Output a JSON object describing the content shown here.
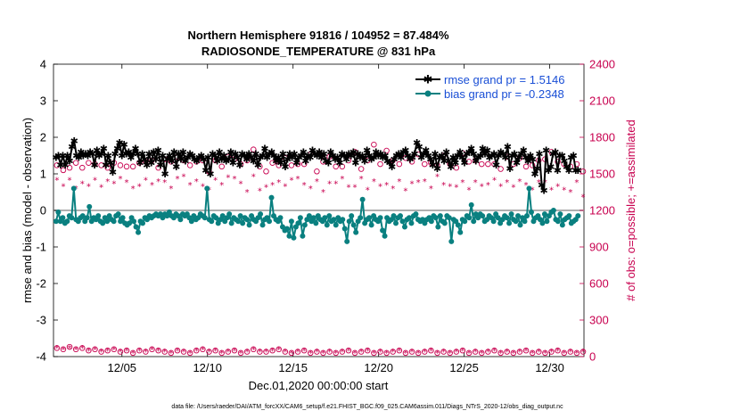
{
  "chart_data": {
    "type": "line",
    "title": "Northern Hemisphere 91816 / 104952 = 87.484%",
    "subtitle": "RADIOSONDE_TEMPERATURE @ 831 hPa",
    "xlabel": "Dec.01,2020 00:00:00 start",
    "ylabel": "rmse and bias (model - observation)",
    "ylabel_right": "# of obs: o=possible; +=assimilated",
    "xlim": [
      1,
      32
    ],
    "ylim": [
      -4,
      4
    ],
    "ylim_right": [
      0,
      2400
    ],
    "x_ticks": [
      5,
      10,
      15,
      20,
      25,
      30
    ],
    "x_tick_labels": [
      "12/05",
      "12/10",
      "12/15",
      "12/20",
      "12/25",
      "12/30"
    ],
    "y_ticks": [
      "-4",
      "-3",
      "-2",
      "-1",
      "0",
      "1",
      "2",
      "3",
      "4"
    ],
    "y_ticks_right": [
      "0",
      "300",
      "600",
      "900",
      "1200",
      "1500",
      "1800",
      "2100",
      "2400"
    ],
    "colors": {
      "rmse": "#000000",
      "bias": "#0a8080",
      "obs": "#c8004f",
      "zero_line": "#b0b0b0"
    },
    "legend_position": "top-right",
    "series": [
      {
        "name": "rmse grand pr = 1.5146",
        "axis": "left",
        "values": [
          1.45,
          1.5,
          1.25,
          1.5,
          1.25,
          1.5,
          1.35,
          1.75,
          1.9,
          1.5,
          1.45,
          1.6,
          1.5,
          1.55,
          1.5,
          1.6,
          1.55,
          1.25,
          1.65,
          1.5,
          1.55,
          1.7,
          1.25,
          1.5,
          1.3,
          1.05,
          1.55,
          1.7,
          1.85,
          1.5,
          1.8,
          1.55,
          1.6,
          1.45,
          1.55,
          1.7,
          1.55,
          1.3,
          1.55,
          1.4,
          1.25,
          1.55,
          1.3,
          1.6,
          1.4,
          1.65,
          1.25,
          1.5,
          1.0,
          1.4,
          1.5,
          1.35,
          1.6,
          1.2,
          1.55,
          1.4,
          1.6,
          1.35,
          1.45,
          1.55,
          1.5,
          1.4,
          1.35,
          1.45,
          1.5,
          1.4,
          1.1,
          1.45,
          1.0,
          1.55,
          1.5,
          1.35,
          1.6,
          1.4,
          1.5,
          1.35,
          1.4,
          1.6,
          1.3,
          1.55,
          1.45,
          1.25,
          1.55,
          1.5,
          1.4,
          1.55,
          1.45,
          1.35,
          1.55,
          1.25,
          1.45,
          1.5,
          1.7,
          1.45,
          1.55,
          1.6,
          1.5,
          1.35,
          1.45,
          1.3,
          1.55,
          1.2,
          1.4,
          1.55,
          1.45,
          1.55,
          1.3,
          1.45,
          1.5,
          1.6,
          1.35,
          1.5,
          1.45,
          1.65,
          1.55,
          1.5,
          1.6,
          1.45,
          1.55,
          1.35,
          1.3,
          1.6,
          1.5,
          1.4,
          1.45,
          1.3,
          1.55,
          1.5,
          1.4,
          1.55,
          1.5,
          1.6,
          1.3,
          1.55,
          1.45,
          1.5,
          1.35,
          1.65,
          1.5,
          1.4,
          1.45,
          1.6,
          1.5,
          1.55,
          1.45,
          1.5,
          1.35,
          1.3,
          1.2,
          1.4,
          1.5,
          1.55,
          1.45,
          1.6,
          1.65,
          1.5,
          1.4,
          1.45,
          1.55,
          1.85,
          1.75,
          1.45,
          1.55,
          1.65,
          1.5,
          1.4,
          1.25,
          1.55,
          1.15,
          1.45,
          1.5,
          1.35,
          1.6,
          1.35,
          1.2,
          1.45,
          1.3,
          1.5,
          1.6,
          1.45,
          1.3,
          1.55,
          1.6,
          1.7,
          1.55,
          1.35,
          1.45,
          1.5,
          1.7,
          1.55,
          1.65,
          1.45,
          1.5,
          1.55,
          1.25,
          1.5,
          1.6,
          1.55,
          1.45,
          1.75,
          1.15,
          1.5,
          1.55,
          1.3,
          1.45,
          1.55,
          1.65,
          1.45,
          1.35,
          1.5,
          1.4,
          1.0,
          1.15,
          1.55,
          0.7,
          0.55,
          1.65,
          1.1,
          1.2,
          1.55,
          1.6,
          1.1,
          1.5,
          1.5,
          1.35,
          1.2,
          1.1,
          1.45,
          1.5,
          1.1,
          1.1
        ]
      },
      {
        "name": "bias grand pr = -0.2348",
        "axis": "left",
        "values": [
          -0.3,
          -0.05,
          -0.3,
          -0.2,
          -0.35,
          -0.3,
          -0.15,
          -0.2,
          0.6,
          -0.25,
          -0.3,
          -0.2,
          -0.15,
          -0.3,
          -0.2,
          0.1,
          -0.3,
          -0.2,
          -0.25,
          -0.15,
          -0.3,
          -0.35,
          -0.2,
          -0.3,
          -0.15,
          -0.25,
          -0.3,
          -0.15,
          -0.1,
          -0.3,
          -0.2,
          -0.35,
          -0.4,
          -0.35,
          -0.2,
          -0.3,
          -0.45,
          -0.6,
          -0.3,
          -0.35,
          -0.2,
          -0.25,
          -0.15,
          -0.2,
          -0.15,
          -0.1,
          -0.15,
          -0.1,
          -0.2,
          -0.1,
          -0.15,
          -0.05,
          -0.15,
          -0.2,
          -0.1,
          -0.15,
          -0.25,
          -0.1,
          -0.15,
          -0.1,
          -0.2,
          -0.3,
          -0.15,
          -0.25,
          -0.2,
          -0.1,
          -0.15,
          -0.2,
          0.6,
          -0.25,
          -0.3,
          -0.15,
          -0.2,
          -0.35,
          -0.25,
          -0.15,
          -0.3,
          -0.2,
          -0.1,
          -0.35,
          -0.2,
          -0.25,
          -0.3,
          -0.15,
          -0.35,
          -0.2,
          -0.25,
          -0.4,
          -0.15,
          -0.25,
          -0.3,
          -0.2,
          -0.1,
          -0.4,
          -0.25,
          -0.2,
          -0.3,
          0.35,
          -0.15,
          -0.25,
          -0.3,
          -0.2,
          -0.45,
          -0.55,
          -0.5,
          -0.7,
          -0.3,
          -0.75,
          -0.45,
          -0.35,
          -0.2,
          -0.7,
          -0.4,
          -0.25,
          -0.15,
          -0.3,
          -0.2,
          -0.35,
          -0.15,
          -0.25,
          -0.3,
          -0.2,
          -0.4,
          -0.15,
          -0.3,
          -0.25,
          -0.4,
          -0.2,
          -0.3,
          -0.25,
          -0.5,
          -0.85,
          -0.3,
          -0.15,
          -0.4,
          -0.6,
          -0.3,
          -0.2,
          0.3,
          -0.35,
          -0.25,
          -0.2,
          -0.4,
          -0.15,
          -0.25,
          -0.3,
          -0.2,
          -0.55,
          -0.7,
          -0.2,
          -0.3,
          -0.25,
          -0.15,
          -0.35,
          -0.2,
          -0.15,
          -0.3,
          -0.45,
          -0.25,
          -0.2,
          -0.35,
          -0.15,
          -0.1,
          -0.25,
          -0.3,
          -0.25,
          -0.35,
          -0.25,
          -0.2,
          -0.3,
          -0.15,
          -0.2,
          -0.45,
          -0.15,
          -0.3,
          -0.35,
          -0.15,
          -0.2,
          -0.85,
          -0.25,
          -0.3,
          -0.4,
          -0.6,
          -0.25,
          -0.3,
          -0.15,
          -0.2,
          0.15,
          -0.3,
          -0.1,
          -0.2,
          -0.1,
          -0.15,
          -0.3,
          -0.25,
          -0.15,
          -0.2,
          -0.3,
          -0.1,
          -0.2,
          -0.35,
          -0.25,
          -0.15,
          -0.2,
          -0.35,
          -0.1,
          -0.25,
          -0.3,
          -0.15,
          -0.4,
          -0.2,
          -0.3,
          -0.15,
          0.6,
          -0.05,
          -0.3,
          -0.2,
          -0.15,
          -0.25,
          -0.35,
          -0.1,
          -0.3,
          -0.15,
          -0.05,
          0.0,
          -0.25,
          -0.3,
          -0.1,
          -0.4,
          -0.25,
          -0.2,
          -0.15,
          -0.35,
          -0.3,
          -0.25,
          -0.15
        ]
      },
      {
        "name": "possible",
        "axis": "right",
        "marker": "o",
        "upper_values": [
          1570,
          1530,
          1550,
          1590,
          1550,
          1590,
          1580,
          1570,
          1550,
          1590,
          1570,
          1560,
          1560,
          1590,
          1600,
          1610,
          1550,
          1620,
          1600,
          1640,
          1610,
          1570,
          1600,
          1610,
          1520,
          1610,
          1560,
          1640,
          1620,
          1580,
          1610,
          1700,
          1560,
          1520,
          1590,
          1570,
          1630,
          1570,
          1580,
          1580,
          1660,
          1520,
          1600,
          1640,
          1560,
          1560,
          1610,
          1680,
          1540,
          1610,
          1740,
          1580,
          1690,
          1610,
          1580,
          1630,
          1600,
          1660,
          1580,
          1590,
          1570,
          1650,
          1580,
          1550,
          1670,
          1600,
          1610,
          1580,
          1580,
          1580,
          1540,
          1640,
          1580,
          1630,
          1560,
          1570,
          1610,
          1620,
          1680,
          1600,
          1580,
          1560,
          1580,
          1520
        ],
        "lower_values": [
          70,
          60,
          80,
          60,
          70,
          50,
          60,
          40,
          50,
          60,
          40,
          50,
          30,
          50,
          40,
          60,
          50,
          40,
          30,
          50,
          40,
          30,
          50,
          60,
          40,
          50,
          30,
          40,
          50,
          30,
          40,
          60,
          40,
          40,
          50,
          60,
          40,
          30,
          40,
          50,
          30,
          40,
          30,
          40,
          30,
          40,
          50,
          30,
          40,
          50,
          30,
          40,
          30,
          40,
          50,
          30,
          40,
          30,
          40,
          50,
          30,
          40,
          30,
          40,
          50,
          30,
          40,
          30,
          40,
          50,
          30,
          40,
          30,
          40,
          50,
          30,
          40,
          30,
          40,
          50,
          30,
          40,
          30,
          40
        ]
      },
      {
        "name": "assimilated",
        "axis": "right",
        "marker": "*",
        "upper_values": [
          1450,
          1400,
          1450,
          1380,
          1420,
          1400,
          1450,
          1390,
          1440,
          1420,
          1460,
          1430,
          1380,
          1400,
          1450,
          1410,
          1440,
          1430,
          1380,
          1460,
          1480,
          1410,
          1440,
          1400,
          1370,
          1450,
          1410,
          1470,
          1460,
          1420,
          1350,
          1480,
          1360,
          1390,
          1410,
          1430,
          1400,
          1450,
          1460,
          1410,
          1380,
          1440,
          1350,
          1420,
          1420,
          1460,
          1390,
          1390,
          1460,
          1370,
          1440,
          1400,
          1410,
          1380,
          1440,
          1360,
          1420,
          1430,
          1440,
          1380,
          1480,
          1410,
          1400,
          1390,
          1430,
          1370,
          1430,
          1400,
          1410,
          1450,
          1400,
          1430,
          1390,
          1440,
          1410,
          1370,
          1430,
          1430,
          1370,
          1400,
          1370,
          1350,
          1430,
          1310
        ],
        "lower_values": [
          70,
          60,
          70,
          60,
          70,
          50,
          60,
          40,
          50,
          60,
          40,
          50,
          30,
          50,
          40,
          60,
          50,
          40,
          30,
          50,
          40,
          30,
          50,
          60,
          40,
          50,
          30,
          40,
          50,
          30,
          40,
          60,
          40,
          40,
          50,
          60,
          40,
          30,
          40,
          50,
          30,
          40,
          30,
          40,
          30,
          40,
          50,
          30,
          40,
          50,
          30,
          40,
          30,
          40,
          50,
          30,
          40,
          30,
          40,
          50,
          30,
          40,
          30,
          40,
          50,
          30,
          40,
          30,
          40,
          50,
          30,
          40,
          30,
          40,
          50,
          30,
          40,
          30,
          40,
          50,
          30,
          40,
          30,
          40
        ]
      }
    ]
  },
  "footer": {
    "datafile": "data file: /Users/raeder/DAI/ATM_forcXX/CAM6_setup/f.e21.FHIST_BGC.f09_025.CAM6assim.011/Diags_NTrS_2020-12/obs_diag_output.nc"
  }
}
